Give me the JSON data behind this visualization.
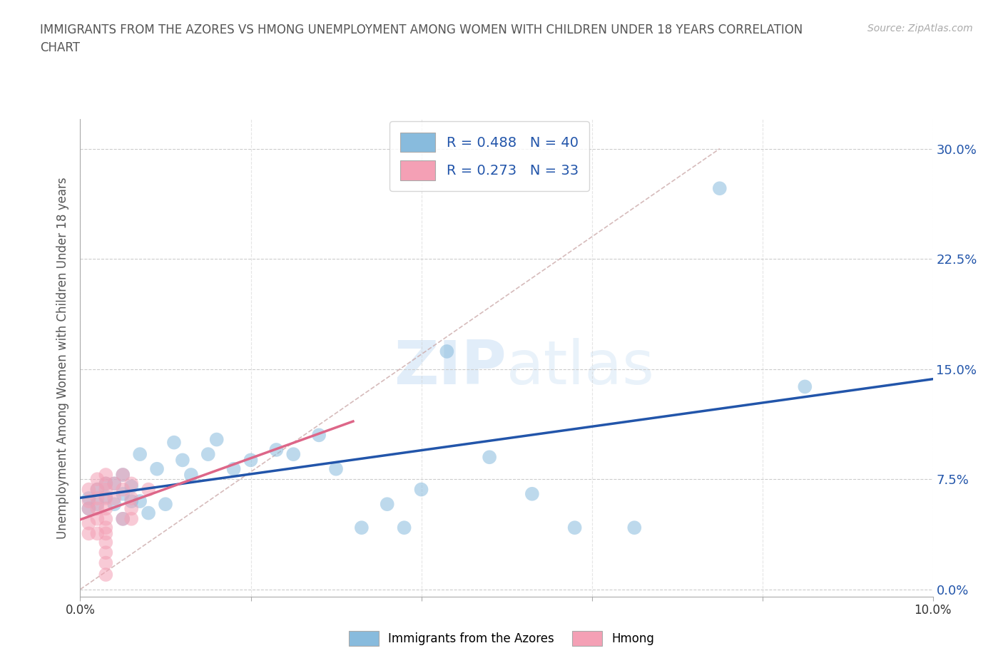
{
  "title_line1": "IMMIGRANTS FROM THE AZORES VS HMONG UNEMPLOYMENT AMONG WOMEN WITH CHILDREN UNDER 18 YEARS CORRELATION",
  "title_line2": "CHART",
  "source": "Source: ZipAtlas.com",
  "ylabel": "Unemployment Among Women with Children Under 18 years",
  "watermark": "ZIPatlas",
  "xlim": [
    0.0,
    0.1
  ],
  "ylim": [
    -0.005,
    0.32
  ],
  "yticks": [
    0.0,
    0.075,
    0.15,
    0.225,
    0.3
  ],
  "ytick_labels": [
    "0.0%",
    "7.5%",
    "15.0%",
    "22.5%",
    "30.0%"
  ],
  "xticks": [
    0.0,
    0.02,
    0.04,
    0.06,
    0.08,
    0.1
  ],
  "xtick_labels": [
    "0.0%",
    "",
    "",
    "",
    "",
    "10.0%"
  ],
  "legend_labels": [
    "Immigrants from the Azores",
    "Hmong"
  ],
  "R_azores": 0.488,
  "N_azores": 40,
  "R_hmong": 0.273,
  "N_hmong": 33,
  "color_azores": "#88bbdd",
  "color_hmong": "#f4a0b5",
  "line_color_azores": "#2255aa",
  "line_color_hmong": "#dd6688",
  "line_color_diagonal": "#ccaaaa",
  "background_color": "#ffffff",
  "azores_x": [
    0.001,
    0.001,
    0.002,
    0.002,
    0.003,
    0.003,
    0.004,
    0.004,
    0.005,
    0.005,
    0.005,
    0.006,
    0.006,
    0.007,
    0.007,
    0.008,
    0.009,
    0.01,
    0.011,
    0.012,
    0.013,
    0.015,
    0.016,
    0.018,
    0.02,
    0.023,
    0.025,
    0.028,
    0.03,
    0.033,
    0.036,
    0.038,
    0.04,
    0.043,
    0.048,
    0.053,
    0.058,
    0.065,
    0.075,
    0.085
  ],
  "azores_y": [
    0.062,
    0.055,
    0.068,
    0.058,
    0.072,
    0.063,
    0.058,
    0.072,
    0.048,
    0.065,
    0.078,
    0.06,
    0.07,
    0.092,
    0.06,
    0.052,
    0.082,
    0.058,
    0.1,
    0.088,
    0.078,
    0.092,
    0.102,
    0.082,
    0.088,
    0.095,
    0.092,
    0.105,
    0.082,
    0.042,
    0.058,
    0.042,
    0.068,
    0.162,
    0.09,
    0.065,
    0.042,
    0.042,
    0.273,
    0.138
  ],
  "hmong_x": [
    0.001,
    0.001,
    0.001,
    0.001,
    0.001,
    0.002,
    0.002,
    0.002,
    0.002,
    0.002,
    0.002,
    0.003,
    0.003,
    0.003,
    0.003,
    0.003,
    0.003,
    0.003,
    0.003,
    0.003,
    0.003,
    0.003,
    0.003,
    0.004,
    0.004,
    0.005,
    0.005,
    0.005,
    0.006,
    0.006,
    0.006,
    0.006,
    0.008
  ],
  "hmong_y": [
    0.068,
    0.06,
    0.055,
    0.045,
    0.038,
    0.075,
    0.068,
    0.062,
    0.055,
    0.048,
    0.038,
    0.078,
    0.072,
    0.068,
    0.062,
    0.055,
    0.048,
    0.042,
    0.038,
    0.032,
    0.025,
    0.018,
    0.01,
    0.072,
    0.062,
    0.078,
    0.068,
    0.048,
    0.072,
    0.062,
    0.055,
    0.048,
    0.068
  ]
}
